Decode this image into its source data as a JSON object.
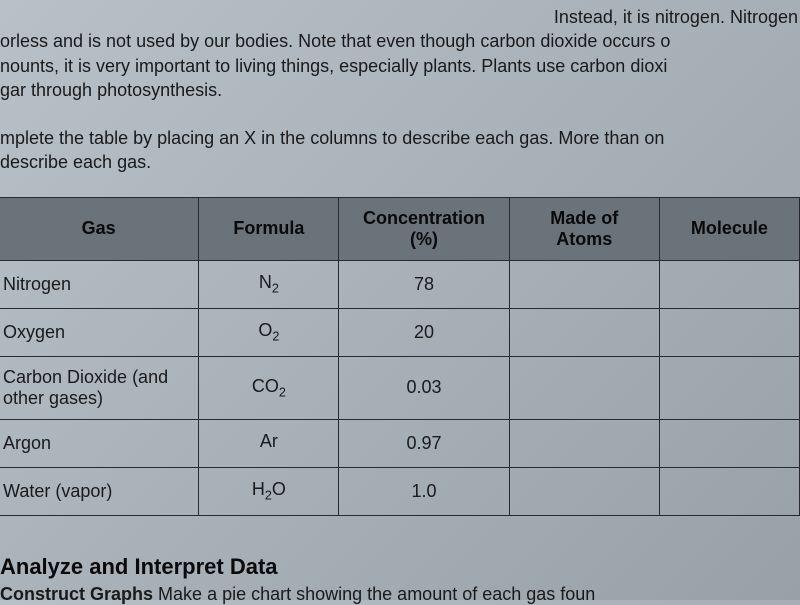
{
  "paragraph_text": "orless and is not used by our bodies. Note that even though carbon dioxide occurs o\nnounts, it is very important to living things, especially plants. Plants use carbon dioxi\ngar through photosynthesis.",
  "paragraph_intro": "Instead, it is nitrogen. Nitrogen",
  "instruction_text": "mplete the table by placing an X in the columns to describe each gas. More than on\ndescribe each gas.",
  "table": {
    "headers": {
      "gas": "Gas",
      "formula": "Formula",
      "concentration_line1": "Concentration",
      "concentration_line2": "(%)",
      "atoms_line1": "Made of",
      "atoms_line2": "Atoms",
      "molecule": "Molecule"
    },
    "rows": [
      {
        "gas": "Nitrogen",
        "formula_base": "N",
        "formula_sub": "2",
        "concentration": "78",
        "atoms": "",
        "molecule": ""
      },
      {
        "gas": "Oxygen",
        "formula_base": "O",
        "formula_sub": "2",
        "concentration": "20",
        "atoms": "",
        "molecule": ""
      },
      {
        "gas": "Carbon Dioxide (and other gases)",
        "formula_base": "CO",
        "formula_sub": "2",
        "concentration": "0.03",
        "atoms": "",
        "molecule": ""
      },
      {
        "gas": "Argon",
        "formula_base": "Ar",
        "formula_sub": "",
        "concentration": "0.97",
        "atoms": "",
        "molecule": ""
      },
      {
        "gas": "Water (vapor)",
        "formula_base": "H",
        "formula_sub": "2",
        "formula_suffix": "O",
        "concentration": "1.0",
        "atoms": "",
        "molecule": ""
      }
    ]
  },
  "heading": "Analyze and Interpret Data",
  "subtext": "Construct Graphs Make a pie chart showing the amount of each gas foun",
  "colors": {
    "header_bg": "#6a727a",
    "border": "#2a2a2a",
    "text": "#1a1a1a"
  }
}
